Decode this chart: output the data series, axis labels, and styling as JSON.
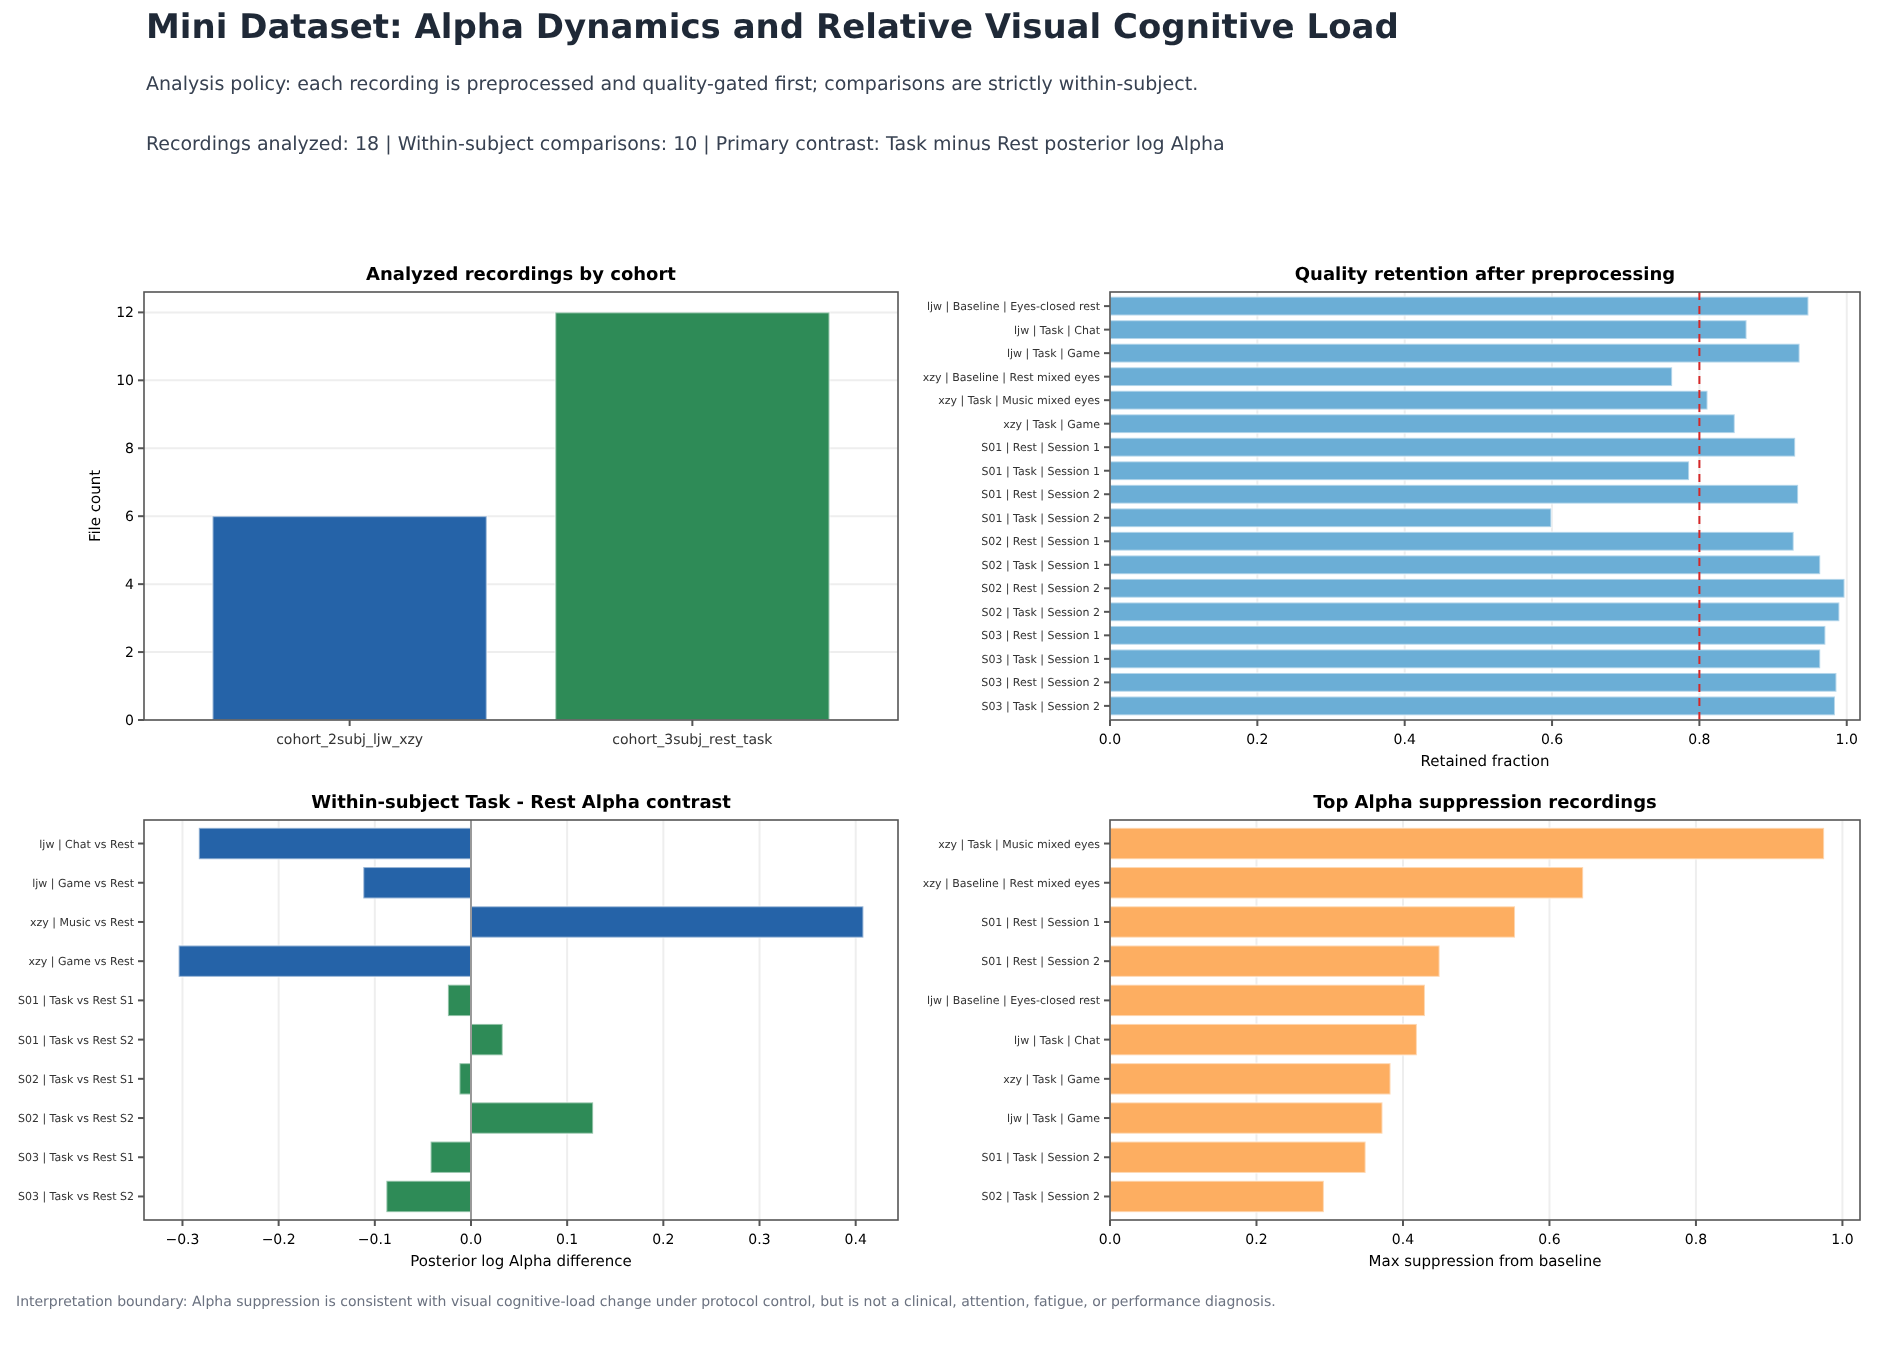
{
  "chart_data": [
    {
      "type": "other",
      "title": "Mini Dataset: Alpha Dynamics and Relative Visual Cognitive Load",
      "subtitle": "Analysis policy: each recording is preprocessed and quality-gated first; comparisons are strictly within-subject.",
      "annotations": [
        "Recordings analyzed: 18 | Within-subject comparisons: 10 | Primary contrast: Task minus Rest posterior log Alpha"
      ]
    },
    {
      "type": "bar",
      "title": "Analyzed recordings by cohort",
      "ylabel": "File count",
      "categories": [
        "cohort_2subj_ljw_xzy",
        "cohort_3subj_rest_task"
      ],
      "values": [
        6,
        12
      ],
      "colors": [
        "#2563a8",
        "#2e8b57"
      ],
      "ylim": [
        0,
        12.6
      ],
      "yticks": [
        0,
        2,
        4,
        6,
        8,
        10,
        12
      ],
      "grid": "y"
    },
    {
      "type": "bar",
      "orientation": "horizontal",
      "title": "Quality retention after preprocessing",
      "xlabel": "Retained fraction",
      "categories": [
        "ljw | Baseline | Eyes-closed rest",
        "ljw | Task | Chat",
        "ljw | Task | Game",
        "xzy | Baseline | Rest mixed eyes",
        "xzy | Task | Music mixed eyes",
        "xzy | Task | Game",
        "S01 | Rest | Session 1",
        "S01 | Task | Session 1",
        "S01 | Rest | Session 2",
        "S01 | Task | Session 2",
        "S02 | Rest | Session 1",
        "S02 | Task | Session 1",
        "S02 | Rest | Session 2",
        "S02 | Task | Session 2",
        "S03 | Rest | Session 1",
        "S03 | Task | Session 1",
        "S03 | Rest | Session 2",
        "S03 | Task | Session 2"
      ],
      "values": [
        0.948,
        0.864,
        0.936,
        0.763,
        0.811,
        0.848,
        0.93,
        0.786,
        0.934,
        0.599,
        0.928,
        0.964,
        0.997,
        0.99,
        0.971,
        0.964,
        0.986,
        0.984
      ],
      "color": "#6baed6",
      "xlim": [
        0,
        1.018
      ],
      "xticks": [
        {
          "value": 0,
          "label": "0.0"
        },
        {
          "value": 0.2,
          "label": "0.2"
        },
        {
          "value": 0.4,
          "label": "0.4"
        },
        {
          "value": 0.6,
          "label": "0.6"
        },
        {
          "value": 0.8,
          "label": "0.8"
        },
        {
          "value": 1,
          "label": "1.0"
        }
      ],
      "grid": "x",
      "ref_lines": [
        {
          "axis": "x",
          "value": 0.8,
          "color": "#d62728",
          "line_style": "dashed"
        }
      ]
    },
    {
      "type": "bar",
      "orientation": "horizontal",
      "title": "Within-subject Task - Rest Alpha contrast",
      "xlabel": "Posterior log Alpha difference",
      "categories": [
        "ljw | Chat vs Rest",
        "ljw | Game vs Rest",
        "xzy | Music vs Rest",
        "xzy | Game vs Rest",
        "S01 | Task vs Rest S1",
        "S01 | Task vs Rest S2",
        "S02 | Task vs Rest S1",
        "S02 | Task vs Rest S2",
        "S03 | Task vs Rest S1",
        "S03 | Task vs Rest S2"
      ],
      "values": [
        -0.283,
        -0.112,
        0.408,
        -0.304,
        -0.024,
        0.033,
        -0.012,
        0.127,
        -0.042,
        -0.088
      ],
      "colors": [
        "#2563a8",
        "#2563a8",
        "#2563a8",
        "#2563a8",
        "#2e8b57",
        "#2e8b57",
        "#2e8b57",
        "#2e8b57",
        "#2e8b57",
        "#2e8b57"
      ],
      "xlim": [
        -0.34,
        0.444
      ],
      "xticks": [
        {
          "value": -0.3,
          "label": "−0.3"
        },
        {
          "value": -0.2,
          "label": "−0.2"
        },
        {
          "value": -0.1,
          "label": "−0.1"
        },
        {
          "value": 0,
          "label": "0.0"
        },
        {
          "value": 0.1,
          "label": "0.1"
        },
        {
          "value": 0.2,
          "label": "0.2"
        },
        {
          "value": 0.3,
          "label": "0.3"
        },
        {
          "value": 0.4,
          "label": "0.4"
        }
      ],
      "grid": "x",
      "ref_lines": [
        {
          "axis": "x",
          "value": 0,
          "color": "#999999",
          "line_style": "solid"
        }
      ]
    },
    {
      "type": "bar",
      "orientation": "horizontal",
      "title": "Top Alpha suppression recordings",
      "xlabel": "Max suppression from baseline",
      "categories": [
        "xzy | Task | Music mixed eyes",
        "xzy | Baseline | Rest mixed eyes",
        "S01 | Rest | Session 1",
        "S01 | Rest | Session 2",
        "ljw | Baseline | Eyes-closed rest",
        "ljw | Task | Chat",
        "xzy | Task | Game",
        "ljw | Task | Game",
        "S01 | Task | Session 2",
        "S02 | Task | Session 2"
      ],
      "values": [
        0.975,
        0.646,
        0.553,
        0.45,
        0.43,
        0.419,
        0.383,
        0.372,
        0.349,
        0.292
      ],
      "color": "#fdae61",
      "xlim": [
        0,
        1.024
      ],
      "xticks": [
        {
          "value": 0,
          "label": "0.0"
        },
        {
          "value": 0.2,
          "label": "0.2"
        },
        {
          "value": 0.4,
          "label": "0.4"
        },
        {
          "value": 0.6,
          "label": "0.6"
        },
        {
          "value": 0.8,
          "label": "0.8"
        },
        {
          "value": 1,
          "label": "1.0"
        }
      ],
      "grid": "x"
    },
    {
      "type": "other",
      "annotations": [
        "Interpretation boundary: Alpha suppression is consistent with visual cognitive-load change under protocol control, but is not a clinical, attention, fatigue, or performance diagnosis."
      ]
    }
  ]
}
